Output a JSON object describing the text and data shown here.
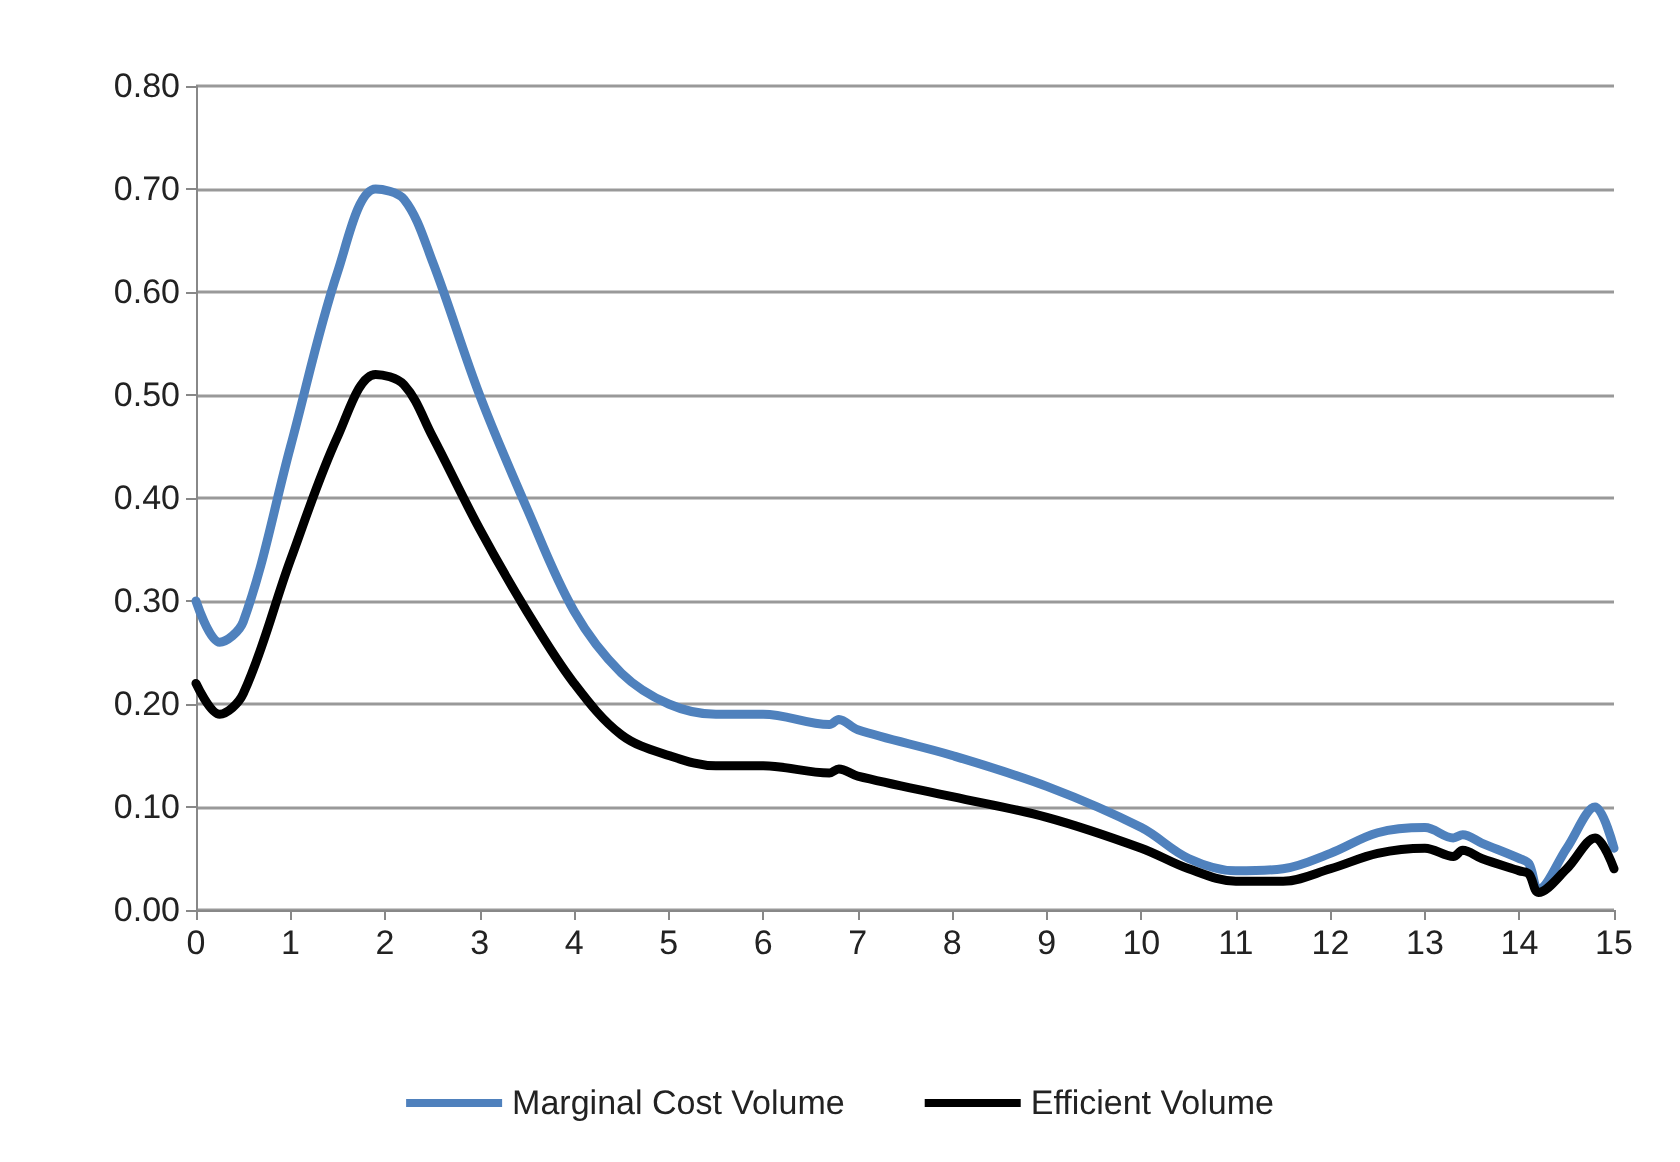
{
  "chart_data": {
    "type": "line",
    "legend": "bottom",
    "grid": "y",
    "marker": "none",
    "line_style": "solid",
    "xlim": [
      0,
      15
    ],
    "xticks": [
      0,
      1,
      2,
      3,
      4,
      5,
      6,
      7,
      8,
      9,
      10,
      11,
      12,
      13,
      14,
      15
    ],
    "ylim": [
      0,
      0.8
    ],
    "yticks": [
      {
        "value": 0,
        "label": "0.00"
      },
      {
        "value": 0.1,
        "label": "0.10"
      },
      {
        "value": 0.2,
        "label": "0.20"
      },
      {
        "value": 0.3,
        "label": "0.30"
      },
      {
        "value": 0.4,
        "label": "0.40"
      },
      {
        "value": 0.5,
        "label": "0.50"
      },
      {
        "value": 0.6,
        "label": "0.60"
      },
      {
        "value": 0.7,
        "label": "0.70"
      },
      {
        "value": 0.8,
        "label": "0.80"
      }
    ],
    "x": [
      0,
      0.25,
      0.5,
      1,
      1.5,
      1.9,
      2.2,
      2.5,
      3,
      3.5,
      4,
      4.5,
      5,
      5.5,
      6,
      6.7,
      6.8,
      7,
      8,
      9,
      10,
      10.5,
      11,
      11.5,
      12,
      12.5,
      13,
      13.3,
      13.4,
      13.6,
      14,
      14.1,
      14.2,
      14.5,
      14.8,
      15
    ],
    "series": [
      {
        "name": "Marginal Cost Volume",
        "color": "#4f81bd",
        "values": [
          0.3,
          0.26,
          0.28,
          0.45,
          0.62,
          0.7,
          0.69,
          0.63,
          0.5,
          0.39,
          0.29,
          0.23,
          0.2,
          0.19,
          0.19,
          0.18,
          0.185,
          0.175,
          0.15,
          0.12,
          0.08,
          0.05,
          0.038,
          0.04,
          0.055,
          0.075,
          0.08,
          0.07,
          0.073,
          0.065,
          0.05,
          0.045,
          0.02,
          0.06,
          0.1,
          0.06
        ]
      },
      {
        "name": "Efficient Volume",
        "color": "#000000",
        "values": [
          0.22,
          0.19,
          0.21,
          0.34,
          0.46,
          0.52,
          0.51,
          0.46,
          0.37,
          0.29,
          0.22,
          0.17,
          0.15,
          0.14,
          0.14,
          0.133,
          0.137,
          0.13,
          0.11,
          0.09,
          0.06,
          0.04,
          0.028,
          0.028,
          0.04,
          0.055,
          0.06,
          0.052,
          0.058,
          0.05,
          0.038,
          0.035,
          0.017,
          0.04,
          0.07,
          0.04
        ]
      }
    ]
  }
}
